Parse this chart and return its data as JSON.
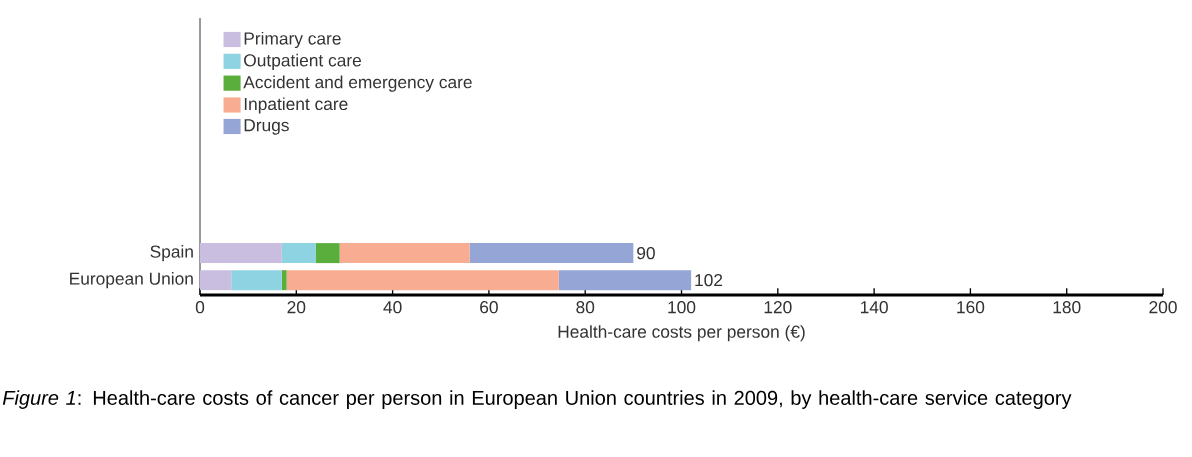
{
  "chart_data": {
    "type": "bar",
    "orientation": "horizontal",
    "stacked": true,
    "categories": [
      "Spain",
      "European Union"
    ],
    "series": [
      {
        "name": "Primary care",
        "color": "#c9bedf",
        "values": [
          17,
          6.5
        ]
      },
      {
        "name": "Outpatient care",
        "color": "#8dd3e2",
        "values": [
          7,
          10.5
        ]
      },
      {
        "name": "Accident and emergency care",
        "color": "#5aaf3c",
        "values": [
          5,
          1
        ]
      },
      {
        "name": "Inpatient care",
        "color": "#f8ad92",
        "values": [
          27,
          56.5
        ]
      },
      {
        "name": "Drugs",
        "color": "#95a6d6",
        "values": [
          34,
          27.5
        ]
      }
    ],
    "totals": [
      "90",
      "102"
    ],
    "xlim": [
      0,
      200
    ],
    "xticks": [
      0,
      20,
      40,
      60,
      80,
      100,
      120,
      140,
      160,
      180,
      200
    ],
    "xlabel": "Health-care costs per person (€)",
    "legend": "top left",
    "grid": false,
    "annotations": [
      "*Figure 1*: Health-care costs of cancer per person in European Union countries in 2009, by health-care service category"
    ]
  }
}
